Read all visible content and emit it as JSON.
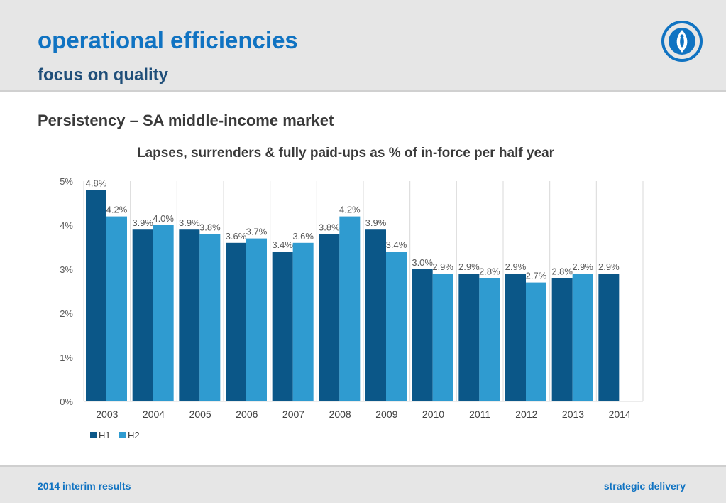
{
  "header": {
    "title": "operational efficiencies",
    "subtitle": "focus on quality"
  },
  "section": {
    "heading": "Persistency – SA middle-income market"
  },
  "icons": {
    "logo": "brand-logo-icon"
  },
  "colors": {
    "brand_blue": "#1073c2",
    "h1_bar": "#0b5788",
    "h2_bar": "#2f9bd0"
  },
  "chart_data": {
    "type": "bar",
    "title": "Lapses, surrenders & fully paid-ups as % of in-force per half year",
    "xlabel": "",
    "ylabel": "",
    "ylim": [
      0,
      5
    ],
    "yticks": [
      "0%",
      "1%",
      "2%",
      "3%",
      "4%",
      "5%"
    ],
    "categories": [
      "2003",
      "2004",
      "2005",
      "2006",
      "2007",
      "2008",
      "2009",
      "2010",
      "2011",
      "2012",
      "2013",
      "2014"
    ],
    "series": [
      {
        "name": "H1",
        "values": [
          4.8,
          3.9,
          3.9,
          3.6,
          3.4,
          3.8,
          3.9,
          3.0,
          2.9,
          2.9,
          2.8,
          2.9
        ],
        "labels": [
          "4.8%",
          "3.9%",
          "3.9%",
          "3.6%",
          "3.4%",
          "3.8%",
          "3.9%",
          "3.0%",
          "2.9%",
          "2.9%",
          "2.8%",
          "2.9%"
        ]
      },
      {
        "name": "H2",
        "values": [
          4.2,
          4.0,
          3.8,
          3.7,
          3.6,
          4.2,
          3.4,
          2.9,
          2.8,
          2.7,
          2.9,
          null
        ],
        "labels": [
          "4.2%",
          "4.0%",
          "3.8%",
          "3.7%",
          "3.6%",
          "4.2%",
          "3.4%",
          "2.9%",
          "2.8%",
          "2.7%",
          "2.9%",
          null
        ]
      }
    ],
    "legend_position": "bottom-left",
    "grid": "vertical category separators"
  },
  "footer": {
    "left": "2014 interim results",
    "right": "strategic delivery"
  }
}
